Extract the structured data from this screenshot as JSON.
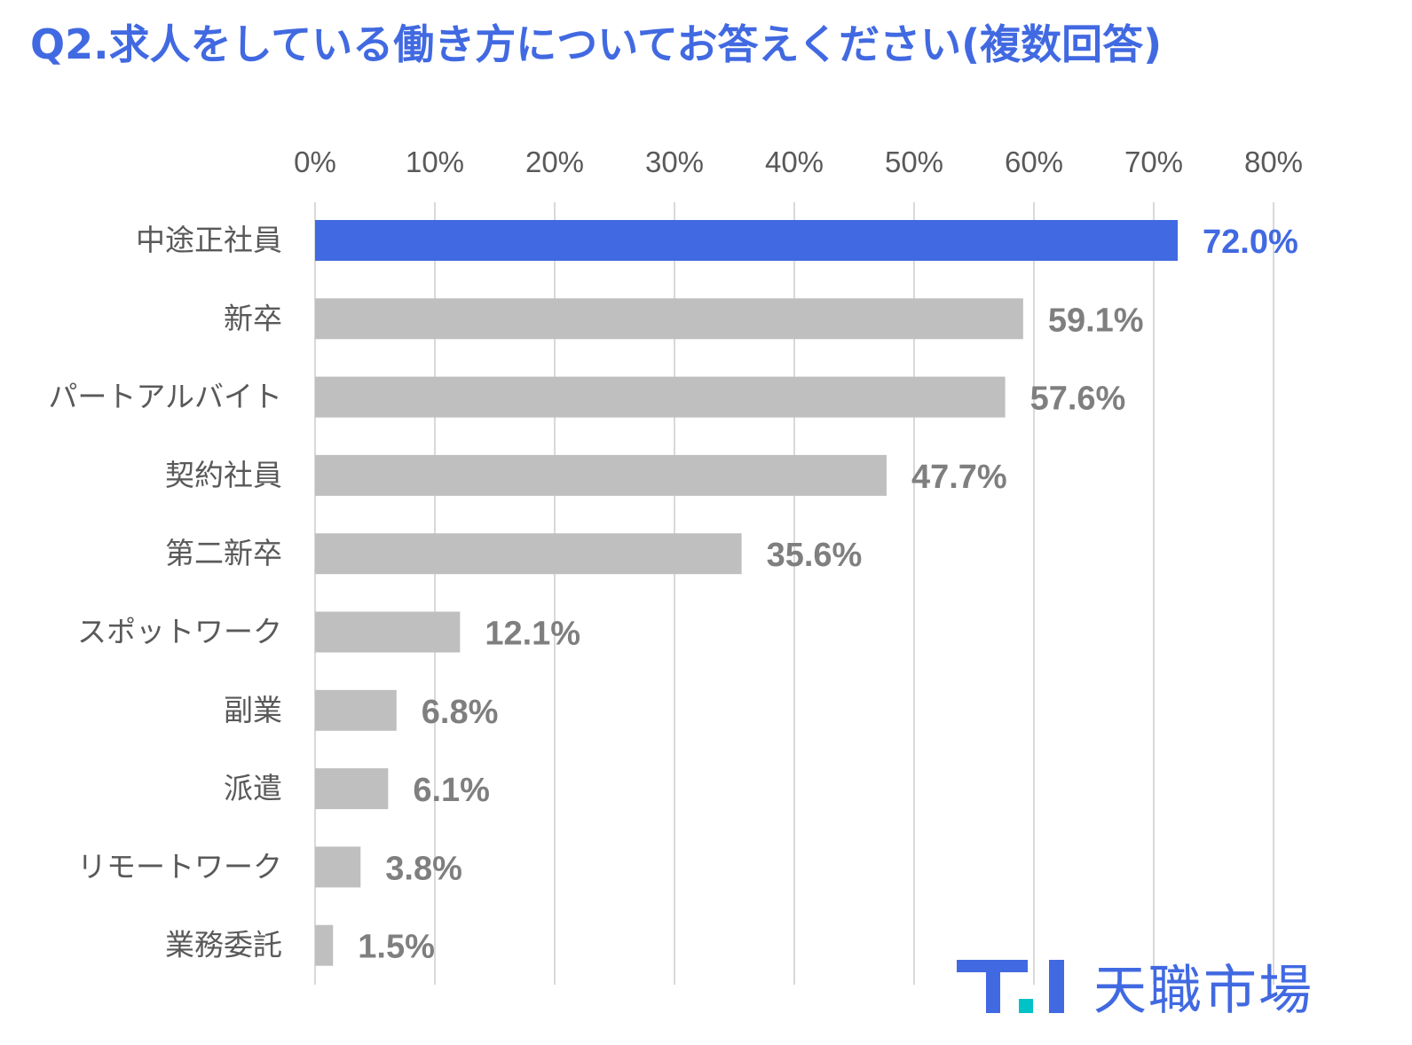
{
  "title": "Q2.求人をしている働き方についてお答えください(複数回答)",
  "brand": {
    "name": "天職市場",
    "logo_letters": "T.I"
  },
  "colors": {
    "highlight": "#4169e1",
    "bar": "#bfbfbf",
    "grid": "#d9d9d9",
    "accent": "#00c2c7"
  },
  "chart_data": {
    "type": "bar",
    "orientation": "horizontal",
    "title": "Q2.求人をしている働き方についてお答えください(複数回答)",
    "categories": [
      "中途正社員",
      "新卒",
      "パートアルバイト",
      "契約社員",
      "第二新卒",
      "スポットワーク",
      "副業",
      "派遣",
      "リモートワーク",
      "業務委託"
    ],
    "values": [
      72.0,
      59.1,
      57.6,
      47.7,
      35.6,
      12.1,
      6.8,
      6.1,
      3.8,
      1.5
    ],
    "value_labels": [
      "72.0%",
      "59.1%",
      "57.6%",
      "47.7%",
      "35.6%",
      "12.1%",
      "6.8%",
      "6.1%",
      "3.8%",
      "1.5%"
    ],
    "highlight_index": 0,
    "xlim": [
      0,
      80
    ],
    "xticks": [
      0,
      10,
      20,
      30,
      40,
      50,
      60,
      70,
      80
    ],
    "xtick_labels": [
      "0%",
      "10%",
      "20%",
      "30%",
      "40%",
      "50%",
      "60%",
      "70%",
      "80%"
    ],
    "xaxis_position": "top",
    "grid": true,
    "legend": "none"
  }
}
